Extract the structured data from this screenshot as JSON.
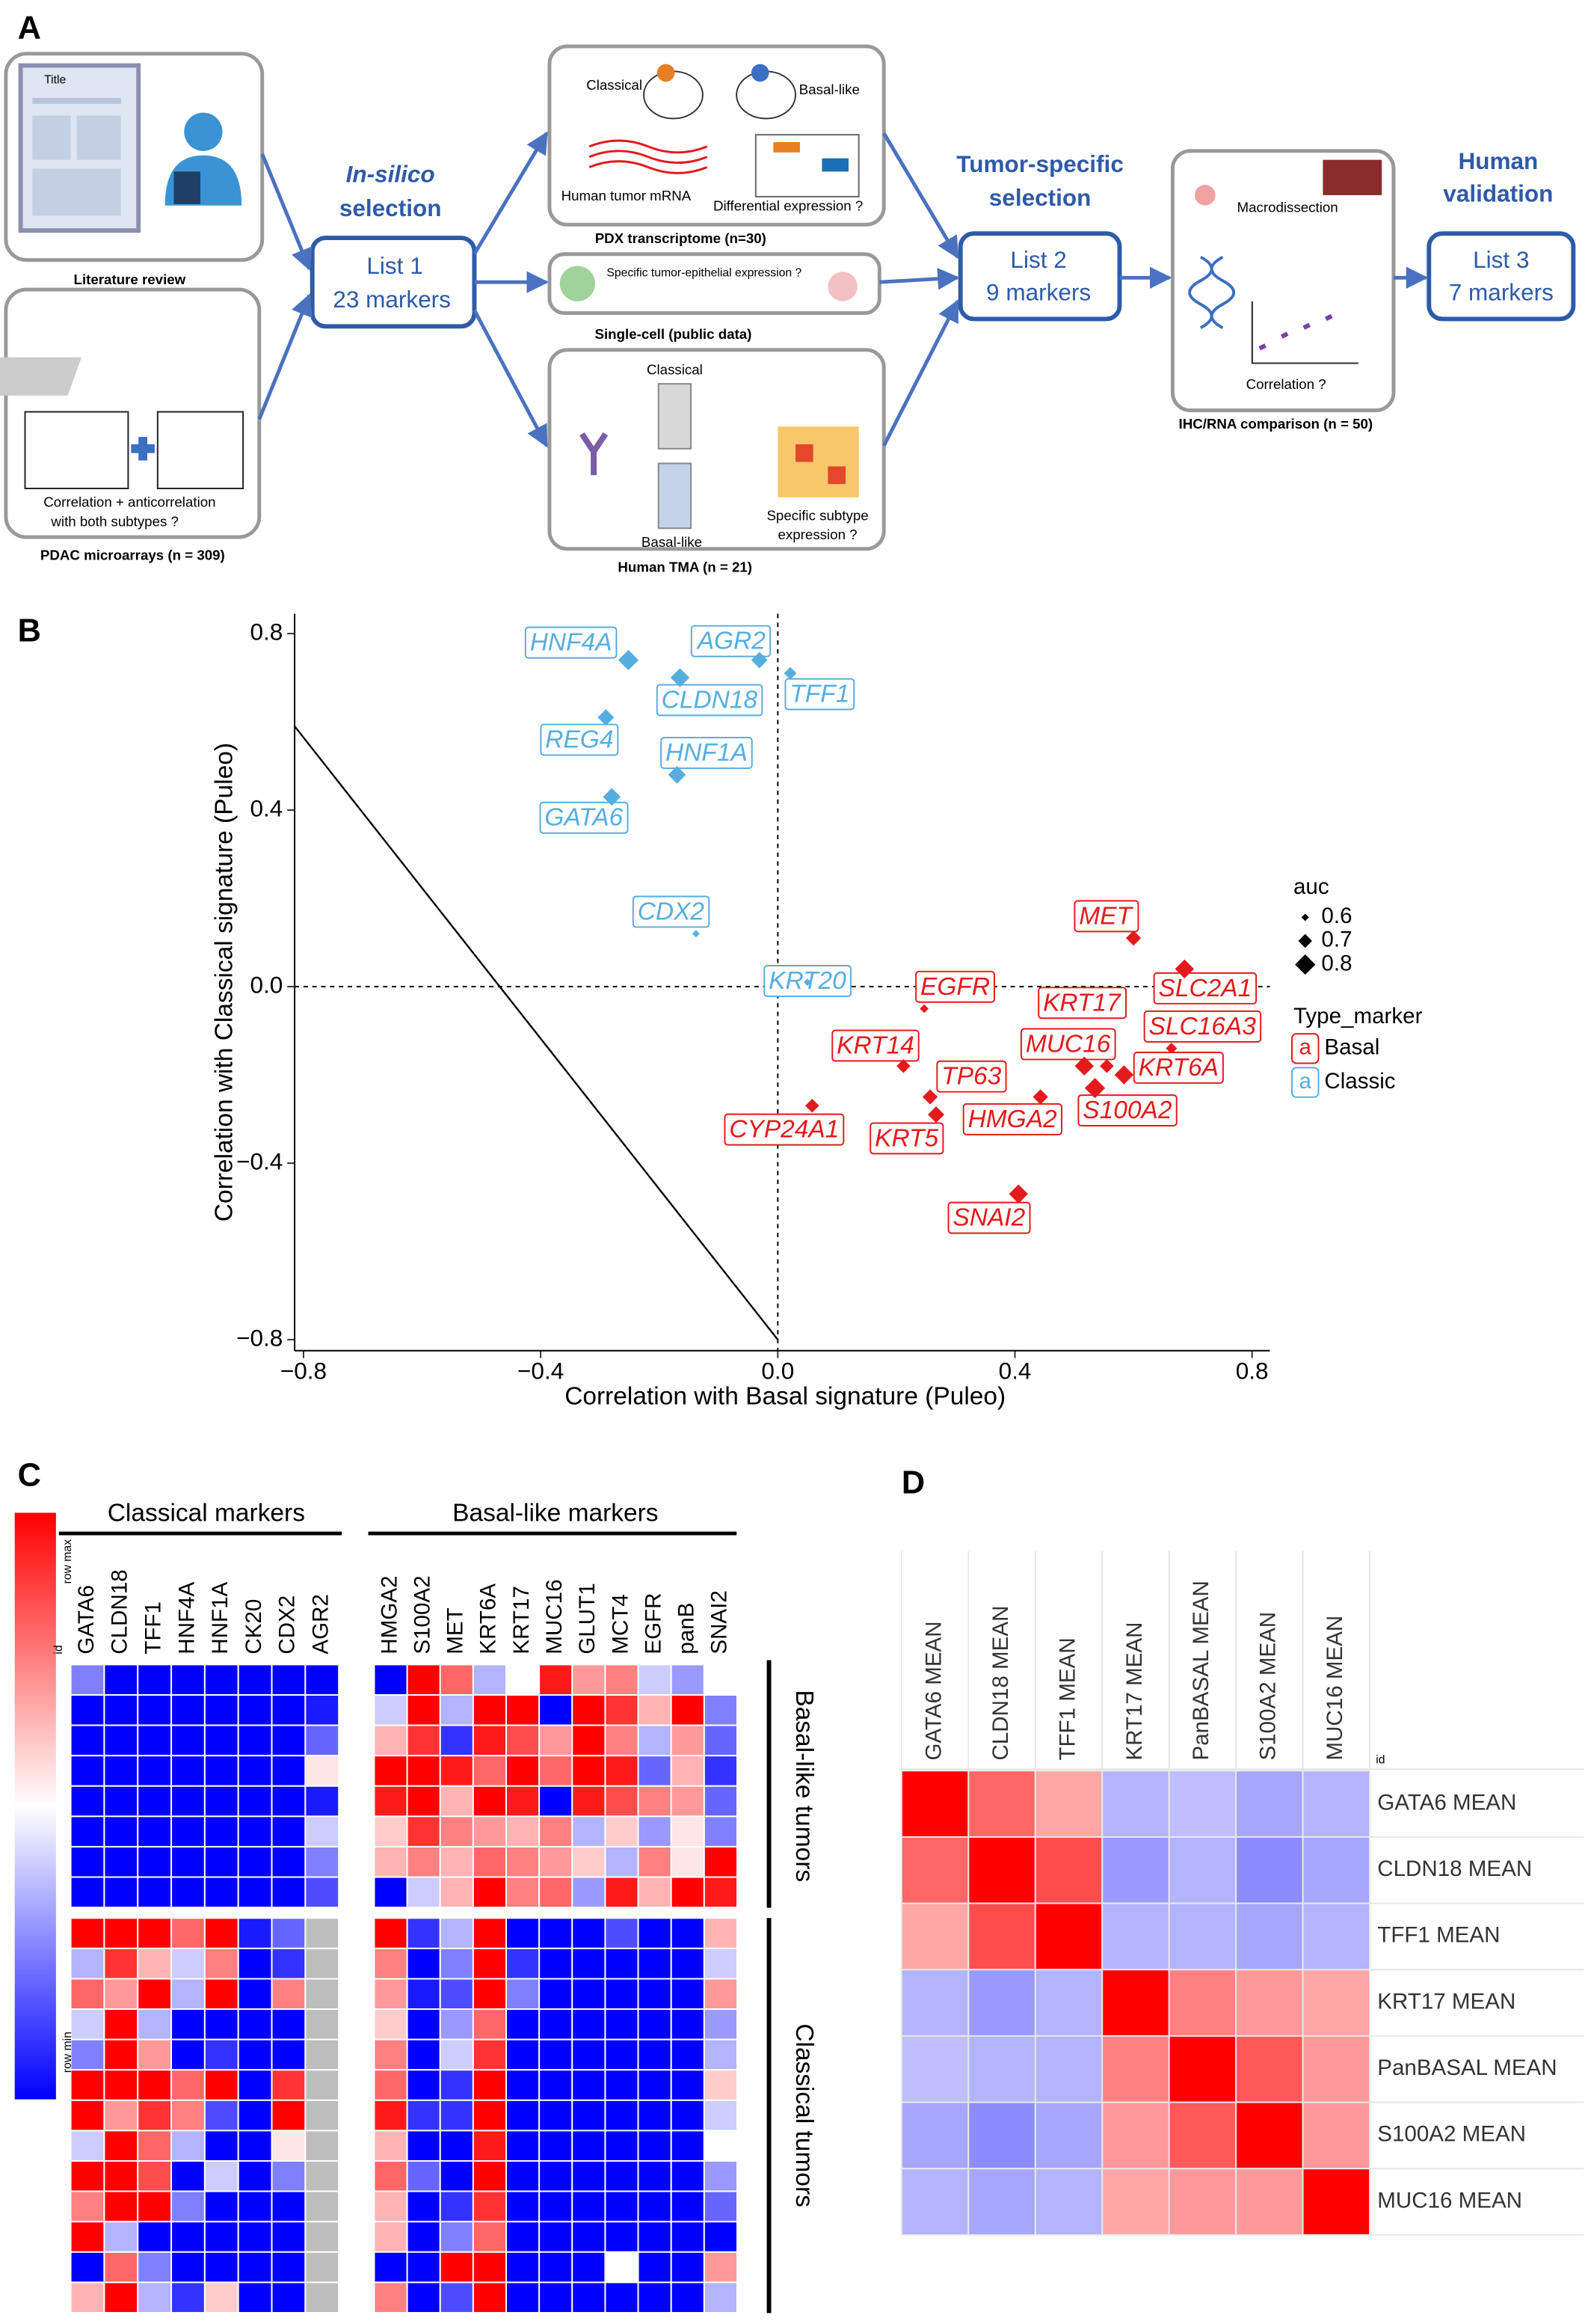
{
  "diagram": {
    "panel": "A",
    "literature": {
      "doc_title": "Title",
      "label": "Literature review"
    },
    "microarrays": {
      "caption": [
        "Correlation + anticorrelation",
        "with both subtypes ?"
      ],
      "label": "PDAC microarrays (n = 309)"
    },
    "in_silico": {
      "title": [
        "In-silico",
        "selection"
      ],
      "list": "List 1",
      "count": "23 markers"
    },
    "pdx": {
      "classical": "Classical",
      "basal": "Basal-like",
      "mrna": "Human tumor  mRNA",
      "question": "Differential expression ?",
      "label": "PDX transcriptome (n=30)"
    },
    "single_cell": {
      "question": "Specific tumor-epithelial expression ?",
      "label": "Single-cell (public data)"
    },
    "tma": {
      "classical": "Classical",
      "basal": "Basal-like",
      "question": [
        "Specific subtype",
        "expression ?"
      ],
      "label": "Human TMA (n = 21)"
    },
    "tumor_specific": {
      "title": [
        "Tumor-specific",
        "selection"
      ],
      "list": "List 2",
      "count": "9 markers"
    },
    "ihc": {
      "macro": "Macrodissection",
      "question": "Correlation ?",
      "label": "IHC/RNA comparison (n = 50)"
    },
    "validation": {
      "title": [
        "Human",
        "validation"
      ],
      "list": "List 3",
      "count": "7 markers"
    }
  },
  "chart_data": [
    {
      "type": "scatter",
      "panel": "B",
      "x_label": "Correlation with Basal signature (Puleo)",
      "y_label": "Correlation with Classical signature (Puleo)",
      "xlim": [
        -0.815,
        0.83
      ],
      "ylim": [
        -0.825,
        0.845
      ],
      "xticks": [
        {
          "value": -0.8,
          "label": "−0.8"
        },
        {
          "value": -0.4,
          "label": "−0.4"
        },
        {
          "value": 0,
          "label": "0.0"
        },
        0.4,
        0.8
      ],
      "yticks": [
        {
          "value": -0.8,
          "label": "−0.8"
        },
        {
          "value": -0.4,
          "label": "−0.4"
        },
        {
          "value": 0,
          "label": "0.0"
        },
        0.4,
        0.8
      ],
      "zero_lines": true,
      "reference_line": {
        "x": [
          -0.815,
          0
        ],
        "y": [
          0.59,
          -0.8
        ]
      },
      "size_legend": {
        "title": "auc",
        "values": [
          0.6,
          0.7,
          0.8
        ]
      },
      "color_legend_title": "Type_marker",
      "legend_symbol": "a",
      "series": [
        {
          "name": "Basal",
          "color": "#e41a1c",
          "labels": [
            "MET",
            "SLC2A1",
            "EGFR",
            "SLC16A3",
            "KRT17",
            "MUC16",
            "KRT6A",
            "KRT14",
            "TP63",
            "HMGA2",
            "S100A2",
            "CYP24A1",
            "KRT5",
            "SNAI2"
          ],
          "x": [
            0.6,
            0.686,
            0.247,
            0.664,
            0.555,
            0.517,
            0.584,
            0.212,
            0.257,
            0.443,
            0.535,
            0.058,
            0.267,
            0.406
          ],
          "values": [
            0.11,
            0.04,
            -0.05,
            -0.14,
            -0.18,
            -0.18,
            -0.2,
            -0.18,
            -0.25,
            -0.25,
            -0.23,
            -0.27,
            -0.29,
            -0.47
          ],
          "sizes": [
            0.72,
            0.78,
            0.62,
            0.66,
            0.7,
            0.78,
            0.78,
            0.7,
            0.72,
            0.72,
            0.8,
            0.7,
            0.74,
            0.78
          ]
        },
        {
          "name": "Classic",
          "color": "#56aee0",
          "labels": [
            "HNF4A",
            "AGR2",
            "TFF1",
            "CLDN18",
            "REG4",
            "HNF1A",
            "GATA6",
            "CDX2",
            "KRT20"
          ],
          "x": [
            -0.252,
            -0.031,
            0.021,
            -0.165,
            -0.29,
            -0.17,
            -0.28,
            -0.138,
            0.05
          ],
          "values": [
            0.74,
            0.74,
            0.71,
            0.7,
            0.61,
            0.48,
            0.43,
            0.12,
            0.01
          ],
          "sizes": [
            0.8,
            0.74,
            0.68,
            0.78,
            0.74,
            0.76,
            0.76,
            0.6,
            0.6
          ]
        }
      ]
    },
    {
      "type": "heatmap",
      "panel": "C",
      "row_header": "id",
      "colorbar": {
        "max_label": "row max",
        "min_label": "row min"
      },
      "colors": {
        "low": "#0000ff",
        "mid": "#ffffff",
        "high": "#ff0000",
        "missing": "#bdbdbd"
      },
      "column_groups": [
        {
          "name": "Classical markers",
          "columns": [
            "GATA6",
            "CLDN18",
            "TFF1",
            "HNF4A",
            "HNF1A",
            "CK20",
            "CDX2",
            "AGR2"
          ]
        },
        {
          "name": "Basal-like markers",
          "columns": [
            "HMGA2",
            "S100A2",
            "MET",
            "KRT6A",
            "KRT17",
            "MUC16",
            "GLUT1",
            "MCT4",
            "EGFR",
            "panB",
            "SNAI2"
          ]
        }
      ],
      "row_groups": [
        {
          "name": "Basal-like tumors",
          "values": [
            [
              -0.5,
              -1,
              -1,
              -1,
              -1,
              -1,
              -1,
              -1,
              -1,
              1,
              0.6,
              -0.3,
              0,
              0.9,
              0.4,
              0.5,
              -0.2,
              -0.4,
              0
            ],
            [
              -1,
              -1,
              -1,
              -1,
              -1,
              -1,
              -1,
              -0.9,
              -0.2,
              1,
              -0.3,
              1,
              1,
              -1,
              1,
              0.8,
              0.3,
              1,
              -0.5
            ],
            [
              -1,
              -1,
              -1,
              -1,
              -1,
              -1,
              -1,
              -0.6,
              0.3,
              0.8,
              -0.8,
              0.9,
              0.7,
              0.4,
              1,
              0.5,
              -0.3,
              0.4,
              -0.6
            ],
            [
              -1,
              -1,
              -1,
              -1,
              -1,
              -1,
              -1,
              0.1,
              1,
              1,
              0.9,
              0.6,
              1,
              0.6,
              1,
              0.9,
              -0.6,
              0.3,
              -0.8
            ],
            [
              -1,
              -1,
              -1,
              -1,
              -1,
              -1,
              -1,
              -0.9,
              0.9,
              1,
              0.3,
              1,
              0.9,
              -1,
              0.9,
              0.7,
              0.5,
              0.4,
              -0.6
            ],
            [
              -1,
              -1,
              -1,
              -1,
              -1,
              -1,
              -1,
              -0.2,
              0.2,
              0.8,
              0.5,
              0.4,
              0.3,
              0.5,
              -0.3,
              0.2,
              -0.4,
              0.1,
              -0.5
            ],
            [
              -1,
              -1,
              -1,
              -1,
              -1,
              -1,
              -1,
              -0.5,
              0.3,
              0.5,
              0.3,
              0.6,
              0.5,
              0.4,
              0.2,
              -0.3,
              0.5,
              0.1,
              1
            ],
            [
              -1,
              -1,
              -1,
              -1,
              -1,
              -1,
              -1,
              -0.7,
              -1,
              -0.2,
              0.3,
              1,
              0.5,
              0.6,
              -0.4,
              0.9,
              0.3,
              1,
              0.9
            ]
          ]
        },
        {
          "name": "Classical tumors",
          "values": [
            [
              1,
              1,
              1,
              0.6,
              1,
              -0.9,
              -0.6,
              null,
              1,
              -0.8,
              -0.3,
              1,
              -1,
              -1,
              -1,
              -0.7,
              -1,
              -1,
              0.3
            ],
            [
              -0.3,
              0.8,
              0.3,
              -0.2,
              0.5,
              -1,
              -0.8,
              null,
              0.5,
              -1,
              -0.5,
              1,
              -0.8,
              -1,
              -1,
              -1,
              -1,
              -1,
              -0.2
            ],
            [
              0.6,
              0.4,
              1,
              -0.3,
              1,
              -1,
              0.5,
              null,
              0.4,
              -0.9,
              -0.7,
              1,
              -0.5,
              -1,
              -1,
              -1,
              -1,
              -1,
              0.4
            ],
            [
              -0.2,
              1,
              -0.3,
              -1,
              -1,
              -1,
              -1,
              null,
              0.2,
              -1,
              -0.4,
              0.6,
              -1,
              -1,
              -1,
              -1,
              -1,
              -1,
              -0.4
            ],
            [
              -0.5,
              1,
              0.4,
              -1,
              -0.8,
              -1,
              -1,
              null,
              0.5,
              -1,
              -0.2,
              0.8,
              -1,
              -1,
              -1,
              -1,
              -1,
              -1,
              -0.3
            ],
            [
              1,
              1,
              1,
              0.6,
              1,
              -1,
              0.8,
              null,
              0.6,
              -1,
              -0.8,
              1,
              -1,
              -1,
              -1,
              -1,
              -1,
              -1,
              0.2
            ],
            [
              1,
              0.4,
              0.8,
              0.5,
              -0.7,
              -1,
              1,
              null,
              0.9,
              -0.8,
              -0.8,
              1,
              -1,
              -1,
              -1,
              -1,
              -1,
              -1,
              -0.2
            ],
            [
              -0.2,
              1,
              0.6,
              -0.3,
              -1,
              -1,
              0.1,
              null,
              0.3,
              -1,
              -1,
              0.9,
              -1,
              -1,
              -1,
              -1,
              -1,
              -1,
              0
            ],
            [
              1,
              1,
              0.7,
              -1,
              -0.2,
              -1,
              -0.5,
              null,
              0.6,
              -0.6,
              -1,
              1,
              -1,
              -1,
              -1,
              -1,
              -1,
              -1,
              -0.4
            ],
            [
              0.5,
              1,
              1,
              -0.5,
              -1,
              -1,
              -1,
              null,
              0.3,
              -1,
              -0.8,
              0.8,
              -1,
              -1,
              -1,
              -1,
              -1,
              -1,
              -0.6
            ],
            [
              1,
              -0.3,
              -1,
              -1,
              -1,
              -1,
              -1,
              null,
              0.3,
              -1,
              -0.5,
              0.6,
              -1,
              -1,
              -1,
              -1,
              -1,
              -1,
              -1
            ],
            [
              -1,
              0.6,
              -0.5,
              -1,
              -1,
              -1,
              -1,
              null,
              -1,
              -1,
              1,
              1,
              -1,
              -1,
              -1,
              0,
              -1,
              -1,
              0.4
            ],
            [
              0.3,
              1,
              -0.3,
              -0.8,
              0.2,
              -1,
              -1,
              null,
              0.5,
              -1,
              -0.7,
              1,
              -1,
              -1,
              -1,
              -1,
              -1,
              -1,
              -0.3
            ]
          ]
        }
      ]
    },
    {
      "type": "heatmap",
      "panel": "D",
      "row_header": "id",
      "colors": {
        "low": "#0000ff",
        "mid": "#ffffff",
        "high": "#ff0000"
      },
      "columns": [
        "GATA6 MEAN",
        "CLDN18 MEAN",
        "TFF1 MEAN",
        "KRT17 MEAN",
        "PanBASAL MEAN",
        "S100A2 MEAN",
        "MUC16 MEAN"
      ],
      "rows": [
        "GATA6 MEAN",
        "CLDN18 MEAN",
        "TFF1 MEAN",
        "KRT17 MEAN",
        "PanBASAL MEAN",
        "S100A2 MEAN",
        "MUC16 MEAN"
      ],
      "values": [
        [
          1,
          0.6,
          0.35,
          -0.3,
          -0.25,
          -0.35,
          -0.3
        ],
        [
          0.6,
          1,
          0.7,
          -0.4,
          -0.3,
          -0.45,
          -0.35
        ],
        [
          0.35,
          0.7,
          1,
          -0.3,
          -0.3,
          -0.35,
          -0.3
        ],
        [
          -0.3,
          -0.4,
          -0.3,
          1,
          0.5,
          0.4,
          0.35
        ],
        [
          -0.25,
          -0.3,
          -0.3,
          0.5,
          1,
          0.65,
          0.4
        ],
        [
          -0.35,
          -0.45,
          -0.35,
          0.4,
          0.65,
          1,
          0.4
        ],
        [
          -0.3,
          -0.35,
          -0.3,
          0.35,
          0.4,
          0.4,
          1
        ]
      ]
    }
  ]
}
